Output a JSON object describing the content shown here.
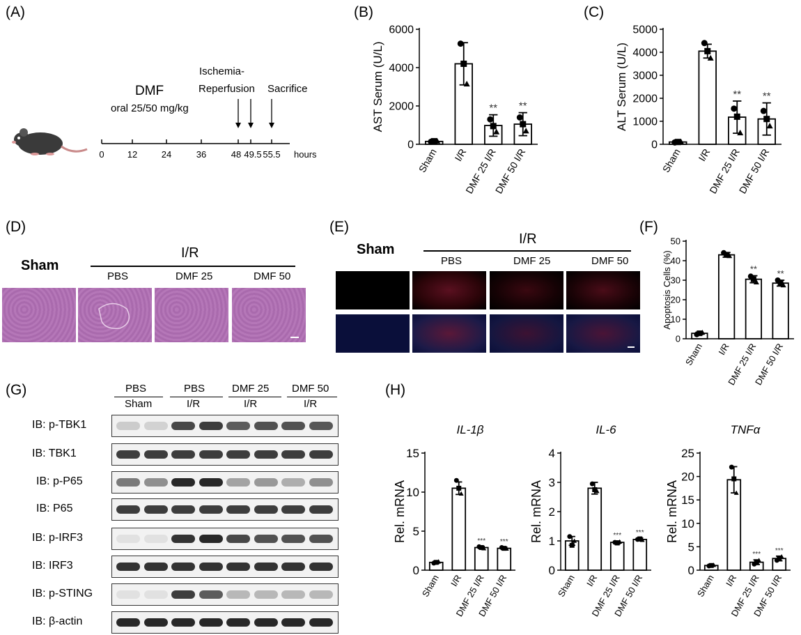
{
  "panels": {
    "A": "(A)",
    "B": "(B)",
    "C": "(C)",
    "D": "(D)",
    "E": "(E)",
    "F": "(F)",
    "G": "(G)",
    "H": "(H)"
  },
  "timeline": {
    "dmf_title": "DMF",
    "dmf_dose": "oral 25/50 mg/kg",
    "ischemia_label_1": "Ischemia-",
    "ischemia_label_2": "Reperfusion",
    "sacrifice_label": "Sacrifice",
    "ticks": [
      "0",
      "12",
      "24",
      "36",
      "48",
      "49.5",
      "55.5"
    ],
    "unit": "hours"
  },
  "histology": {
    "sham_label": "Sham",
    "group_label": "I/R",
    "conditions": [
      "PBS",
      "DMF 25",
      "DMF 50"
    ]
  },
  "fluorescence": {
    "sham_label": "Sham",
    "group_label": "I/R",
    "conditions": [
      "PBS",
      "DMF 25",
      "DMF 50"
    ]
  },
  "western": {
    "groups": [
      {
        "top": "PBS",
        "bottom": "Sham"
      },
      {
        "top": "PBS",
        "bottom": "I/R"
      },
      {
        "top": "DMF 25",
        "bottom": "I/R"
      },
      {
        "top": "DMF 50",
        "bottom": "I/R"
      }
    ],
    "blots": [
      {
        "label": "IB: p-TBK1",
        "intensities": [
          0.15,
          0.12,
          0.8,
          0.85,
          0.7,
          0.75,
          0.75,
          0.72
        ]
      },
      {
        "label": "IB: TBK1",
        "intensities": [
          0.85,
          0.85,
          0.85,
          0.85,
          0.85,
          0.85,
          0.85,
          0.85
        ]
      },
      {
        "label": "IB: p-P65",
        "intensities": [
          0.55,
          0.45,
          0.95,
          0.95,
          0.35,
          0.4,
          0.3,
          0.45
        ]
      },
      {
        "label": "IB: P65",
        "intensities": [
          0.85,
          0.85,
          0.85,
          0.85,
          0.85,
          0.85,
          0.85,
          0.85
        ]
      },
      {
        "label": "IB: p-IRF3",
        "intensities": [
          0.05,
          0.05,
          0.9,
          0.95,
          0.8,
          0.75,
          0.75,
          0.75
        ]
      },
      {
        "label": "IB: IRF3",
        "intensities": [
          0.9,
          0.9,
          0.9,
          0.9,
          0.9,
          0.9,
          0.9,
          0.9
        ]
      },
      {
        "label": "IB: p-STING",
        "intensities": [
          0.05,
          0.05,
          0.85,
          0.7,
          0.25,
          0.25,
          0.25,
          0.25
        ]
      },
      {
        "label": "IB: β-actin",
        "intensities": [
          0.95,
          0.95,
          0.95,
          0.95,
          0.95,
          0.95,
          0.95,
          0.95
        ]
      }
    ]
  },
  "chart_data": [
    {
      "id": "B",
      "type": "bar",
      "categories": [
        "Sham",
        "I/R",
        "DMF 25 I/R",
        "DMF 50 I/R"
      ],
      "values": [
        150,
        4200,
        980,
        1050
      ],
      "errors": [
        40,
        1100,
        560,
        600
      ],
      "points": [
        [
          130,
          160,
          170
        ],
        [
          5250,
          4200,
          3150
        ],
        [
          1300,
          950,
          650
        ],
        [
          1400,
          1050,
          700
        ]
      ],
      "significance": [
        "",
        "",
        "**",
        "**"
      ],
      "ylabel": "AST Serum (U/L)",
      "ylim": [
        0,
        6000
      ],
      "yticks": [
        0,
        2000,
        4000,
        6000
      ]
    },
    {
      "id": "C",
      "type": "bar",
      "categories": [
        "Sham",
        "I/R",
        "DMF 25 I/R",
        "DMF 50 I/R"
      ],
      "values": [
        100,
        4050,
        1180,
        1100
      ],
      "errors": [
        20,
        300,
        700,
        700
      ],
      "points": [
        [
          80,
          100,
          110
        ],
        [
          4400,
          4050,
          3750
        ],
        [
          1550,
          1200,
          500
        ],
        [
          1450,
          1100,
          800
        ]
      ],
      "significance": [
        "",
        "",
        "**",
        "**"
      ],
      "ylabel": "ALT Serum (U/L)",
      "ylim": [
        0,
        5000
      ],
      "yticks": [
        0,
        1000,
        2000,
        3000,
        4000,
        5000
      ]
    },
    {
      "id": "F",
      "type": "bar",
      "categories": [
        "Sham",
        "I/R",
        "DMF 25 I/R",
        "DMF 50 I/R"
      ],
      "values": [
        2.8,
        43,
        30.5,
        28.5
      ],
      "errors": [
        0.6,
        1.2,
        1.8,
        1.5
      ],
      "points": [
        [
          2.2,
          2.8,
          3.2
        ],
        [
          44,
          43,
          42.5
        ],
        [
          32,
          30.5,
          29
        ],
        [
          30,
          28.5,
          27.5
        ]
      ],
      "significance": [
        "",
        "",
        "**",
        "**"
      ],
      "ylabel": "Apoptosis Cells (%)",
      "ylim": [
        0,
        50
      ],
      "yticks": [
        0,
        10,
        20,
        30,
        40,
        50
      ]
    },
    {
      "id": "H1",
      "type": "bar",
      "title": "IL-1β",
      "categories": [
        "Sham",
        "I/R",
        "DMF 25 I/R",
        "DMF 50 I/R"
      ],
      "values": [
        1.0,
        10.5,
        2.9,
        2.8
      ],
      "errors": [
        0.15,
        0.8,
        0.15,
        0.15
      ],
      "points": [
        [
          0.9,
          1.0,
          1.1
        ],
        [
          11.5,
          10.5,
          9.8
        ],
        [
          3.0,
          2.9,
          2.8
        ],
        [
          2.9,
          2.8,
          2.75
        ]
      ],
      "significance": [
        "",
        "",
        "***",
        "***"
      ],
      "ylabel": "Rel. mRNA",
      "ylim": [
        0,
        15
      ],
      "yticks": [
        0,
        5,
        10,
        15
      ]
    },
    {
      "id": "H2",
      "type": "bar",
      "title": "IL-6",
      "categories": [
        "Sham",
        "I/R",
        "DMF 25 I/R",
        "DMF 50 I/R"
      ],
      "values": [
        1.0,
        2.8,
        0.95,
        1.05
      ],
      "errors": [
        0.15,
        0.2,
        0.05,
        0.05
      ],
      "points": [
        [
          1.15,
          0.85,
          1.0
        ],
        [
          2.95,
          2.75,
          2.7
        ],
        [
          0.95,
          0.93,
          0.97
        ],
        [
          1.05,
          1.07,
          1.03
        ]
      ],
      "significance": [
        "",
        "",
        "***",
        "***"
      ],
      "ylabel": "Rel. mRNA",
      "ylim": [
        0,
        4
      ],
      "yticks": [
        0,
        1,
        2,
        3,
        4
      ]
    },
    {
      "id": "H3",
      "type": "bar",
      "title": "TNFα",
      "categories": [
        "Sham",
        "I/R",
        "DMF 25 I/R",
        "DMF 50 I/R"
      ],
      "values": [
        1.0,
        19.3,
        1.7,
        2.5
      ],
      "errors": [
        0.2,
        2.8,
        0.5,
        0.5
      ],
      "points": [
        [
          0.9,
          1.0,
          1.1
        ],
        [
          22,
          19.5,
          16.5
        ],
        [
          1.3,
          1.8,
          2.1
        ],
        [
          2.1,
          2.6,
          2.9
        ]
      ],
      "significance": [
        "",
        "",
        "***",
        "***"
      ],
      "ylabel": "Rel. mRNA",
      "ylim": [
        0,
        25
      ],
      "yticks": [
        0,
        5,
        10,
        15,
        20,
        25
      ]
    }
  ]
}
